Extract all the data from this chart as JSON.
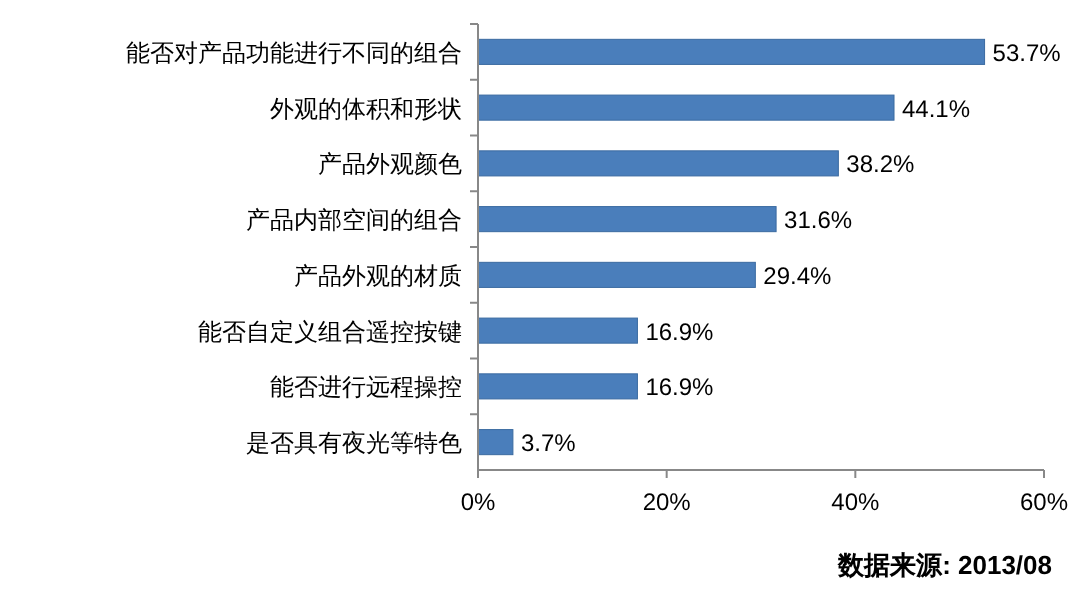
{
  "chart_data": {
    "type": "bar",
    "orientation": "horizontal",
    "categories": [
      "能否对产品功能进行不同的组合",
      "外观的体积和形状",
      "产品外观颜色",
      "产品内部空间的组合",
      "产品外观的材质",
      "能否自定义组合遥控按键",
      "能否进行远程操控",
      "是否具有夜光等特色"
    ],
    "values": [
      53.7,
      44.1,
      38.2,
      31.6,
      29.4,
      16.9,
      16.9,
      3.7
    ],
    "value_labels": [
      "53.7%",
      "44.1%",
      "38.2%",
      "31.6%",
      "29.4%",
      "16.9%",
      "16.9%",
      "3.7%"
    ],
    "color": "#4a7ebb",
    "xlim": [
      0,
      60
    ],
    "xticks": [
      {
        "value": 0,
        "label": "0%"
      },
      {
        "value": 20,
        "label": "20%"
      },
      {
        "value": 40,
        "label": "40%"
      },
      {
        "value": 60,
        "label": "60%"
      }
    ],
    "grid": false,
    "annotations": [
      "数据来源: 2013/08"
    ]
  }
}
